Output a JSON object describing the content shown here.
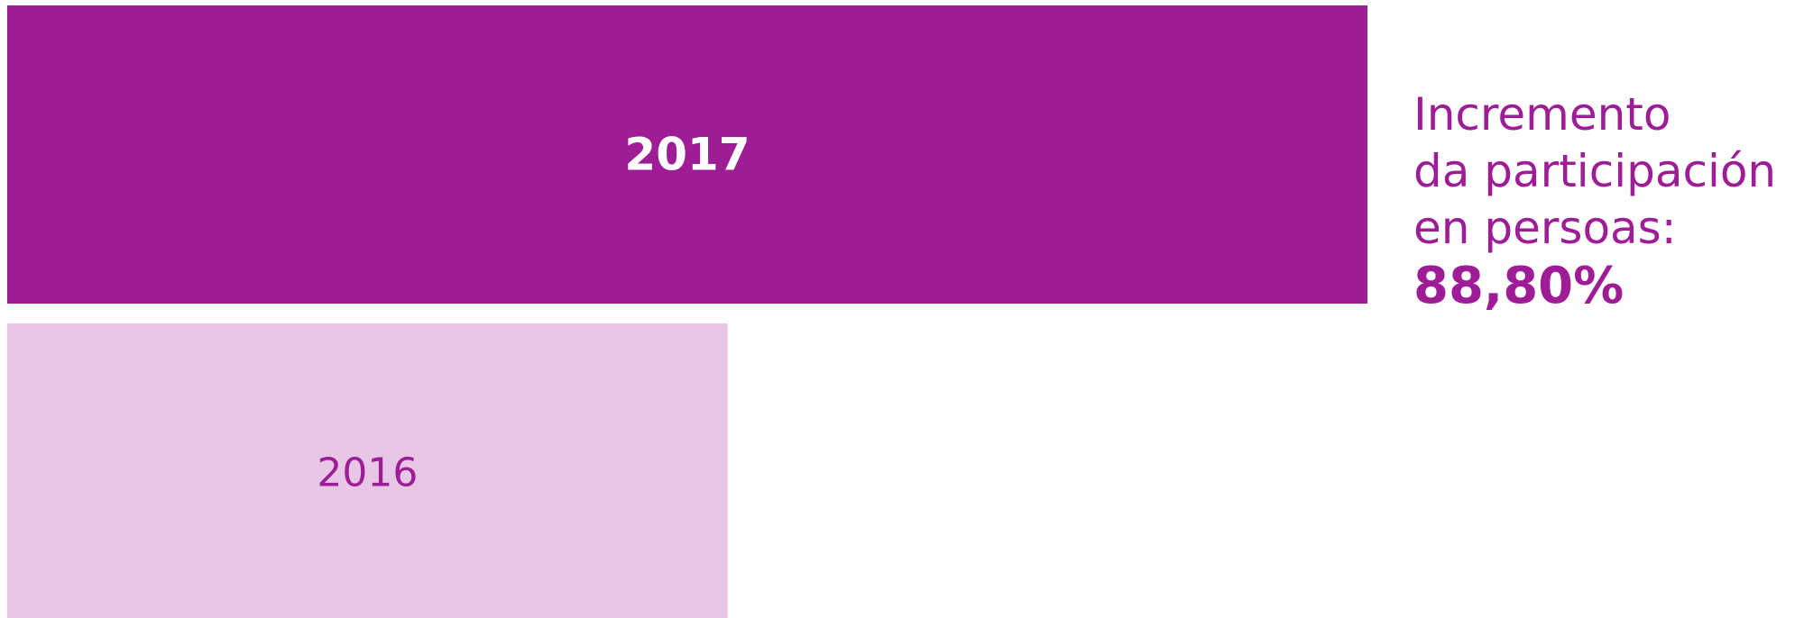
{
  "chart_data": {
    "type": "bar",
    "orientation": "horizontal",
    "categories": [
      "2017",
      "2016"
    ],
    "values": [
      188.8,
      100
    ],
    "colors": [
      "#9e1c96",
      "#e8c7e6"
    ],
    "annotation": {
      "lines": [
        "Incremento",
        "da participación",
        "en persoas:"
      ],
      "highlight": "88,80%"
    }
  }
}
